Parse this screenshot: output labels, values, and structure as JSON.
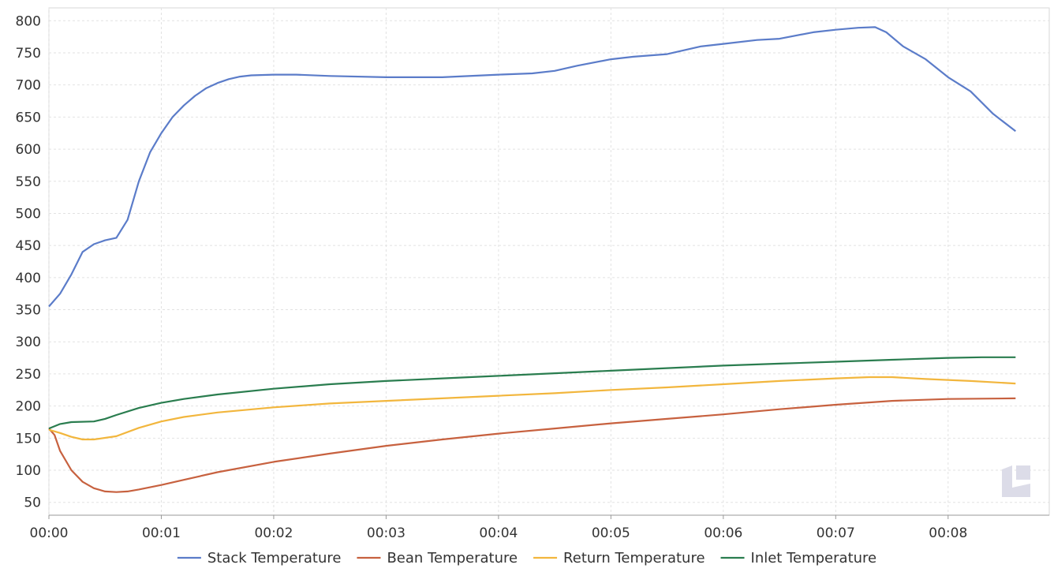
{
  "chart_data": {
    "type": "line",
    "title": "",
    "xlabel": "",
    "ylabel": "",
    "xlim": [
      0,
      8.9
    ],
    "ylim": [
      30,
      820
    ],
    "y_ticks": [
      50,
      100,
      150,
      200,
      250,
      300,
      350,
      400,
      450,
      500,
      550,
      600,
      650,
      700,
      750,
      800
    ],
    "x_ticks": [
      {
        "value": 0,
        "label": "00:00"
      },
      {
        "value": 1,
        "label": "00:01"
      },
      {
        "value": 2,
        "label": "00:02"
      },
      {
        "value": 3,
        "label": "00:03"
      },
      {
        "value": 4,
        "label": "00:04"
      },
      {
        "value": 5,
        "label": "00:05"
      },
      {
        "value": 6,
        "label": "00:06"
      },
      {
        "value": 7,
        "label": "00:07"
      },
      {
        "value": 8,
        "label": "00:08"
      }
    ],
    "grid": true,
    "legend_position": "bottom",
    "series": [
      {
        "name": "Stack Temperature",
        "color": "#5b7cc9",
        "points": [
          [
            0,
            355
          ],
          [
            0.1,
            375
          ],
          [
            0.2,
            405
          ],
          [
            0.3,
            440
          ],
          [
            0.4,
            452
          ],
          [
            0.5,
            458
          ],
          [
            0.6,
            462
          ],
          [
            0.7,
            490
          ],
          [
            0.8,
            550
          ],
          [
            0.9,
            595
          ],
          [
            1.0,
            625
          ],
          [
            1.1,
            650
          ],
          [
            1.2,
            668
          ],
          [
            1.3,
            683
          ],
          [
            1.4,
            695
          ],
          [
            1.5,
            703
          ],
          [
            1.6,
            709
          ],
          [
            1.7,
            713
          ],
          [
            1.8,
            715
          ],
          [
            2.0,
            716
          ],
          [
            2.2,
            716
          ],
          [
            2.5,
            714
          ],
          [
            3.0,
            712
          ],
          [
            3.5,
            712
          ],
          [
            4.0,
            716
          ],
          [
            4.3,
            718
          ],
          [
            4.5,
            722
          ],
          [
            4.7,
            730
          ],
          [
            5.0,
            740
          ],
          [
            5.2,
            744
          ],
          [
            5.5,
            748
          ],
          [
            5.8,
            760
          ],
          [
            6.0,
            764
          ],
          [
            6.3,
            770
          ],
          [
            6.5,
            772
          ],
          [
            6.8,
            782
          ],
          [
            7.0,
            786
          ],
          [
            7.2,
            789
          ],
          [
            7.35,
            790
          ],
          [
            7.45,
            782
          ],
          [
            7.6,
            760
          ],
          [
            7.8,
            740
          ],
          [
            8.0,
            712
          ],
          [
            8.2,
            690
          ],
          [
            8.4,
            655
          ],
          [
            8.6,
            628
          ]
        ]
      },
      {
        "name": "Bean Temperature",
        "color": "#c7613f",
        "points": [
          [
            0,
            165
          ],
          [
            0.05,
            155
          ],
          [
            0.1,
            130
          ],
          [
            0.2,
            100
          ],
          [
            0.3,
            82
          ],
          [
            0.4,
            72
          ],
          [
            0.5,
            67
          ],
          [
            0.6,
            66
          ],
          [
            0.7,
            67
          ],
          [
            0.8,
            70
          ],
          [
            1.0,
            77
          ],
          [
            1.2,
            85
          ],
          [
            1.5,
            97
          ],
          [
            2.0,
            113
          ],
          [
            2.5,
            126
          ],
          [
            3.0,
            138
          ],
          [
            3.5,
            148
          ],
          [
            4.0,
            157
          ],
          [
            4.5,
            165
          ],
          [
            5.0,
            173
          ],
          [
            5.5,
            180
          ],
          [
            6.0,
            187
          ],
          [
            6.5,
            195
          ],
          [
            7.0,
            202
          ],
          [
            7.5,
            208
          ],
          [
            8.0,
            211
          ],
          [
            8.6,
            212
          ]
        ]
      },
      {
        "name": "Return Temperature",
        "color": "#f2b63d",
        "points": [
          [
            0,
            163
          ],
          [
            0.1,
            158
          ],
          [
            0.2,
            152
          ],
          [
            0.3,
            148
          ],
          [
            0.4,
            148
          ],
          [
            0.6,
            153
          ],
          [
            0.8,
            166
          ],
          [
            1.0,
            176
          ],
          [
            1.2,
            183
          ],
          [
            1.5,
            190
          ],
          [
            2.0,
            198
          ],
          [
            2.5,
            204
          ],
          [
            3.0,
            208
          ],
          [
            3.5,
            212
          ],
          [
            4.0,
            216
          ],
          [
            4.5,
            220
          ],
          [
            5.0,
            225
          ],
          [
            5.5,
            229
          ],
          [
            6.0,
            234
          ],
          [
            6.5,
            239
          ],
          [
            7.0,
            243
          ],
          [
            7.3,
            245
          ],
          [
            7.5,
            245
          ],
          [
            7.8,
            242
          ],
          [
            8.2,
            239
          ],
          [
            8.6,
            235
          ]
        ]
      },
      {
        "name": "Inlet Temperature",
        "color": "#2a7d4f",
        "points": [
          [
            0,
            165
          ],
          [
            0.1,
            172
          ],
          [
            0.2,
            175
          ],
          [
            0.4,
            176
          ],
          [
            0.5,
            180
          ],
          [
            0.6,
            186
          ],
          [
            0.8,
            197
          ],
          [
            1.0,
            205
          ],
          [
            1.2,
            211
          ],
          [
            1.5,
            218
          ],
          [
            2.0,
            227
          ],
          [
            2.5,
            234
          ],
          [
            3.0,
            239
          ],
          [
            3.5,
            243
          ],
          [
            4.0,
            247
          ],
          [
            4.5,
            251
          ],
          [
            5.0,
            255
          ],
          [
            5.5,
            259
          ],
          [
            6.0,
            263
          ],
          [
            6.5,
            266
          ],
          [
            7.0,
            269
          ],
          [
            7.5,
            272
          ],
          [
            8.0,
            275
          ],
          [
            8.3,
            276
          ],
          [
            8.6,
            276
          ]
        ]
      }
    ]
  },
  "watermark": {
    "icon": "logo-icon",
    "color": "#dcdce8"
  }
}
